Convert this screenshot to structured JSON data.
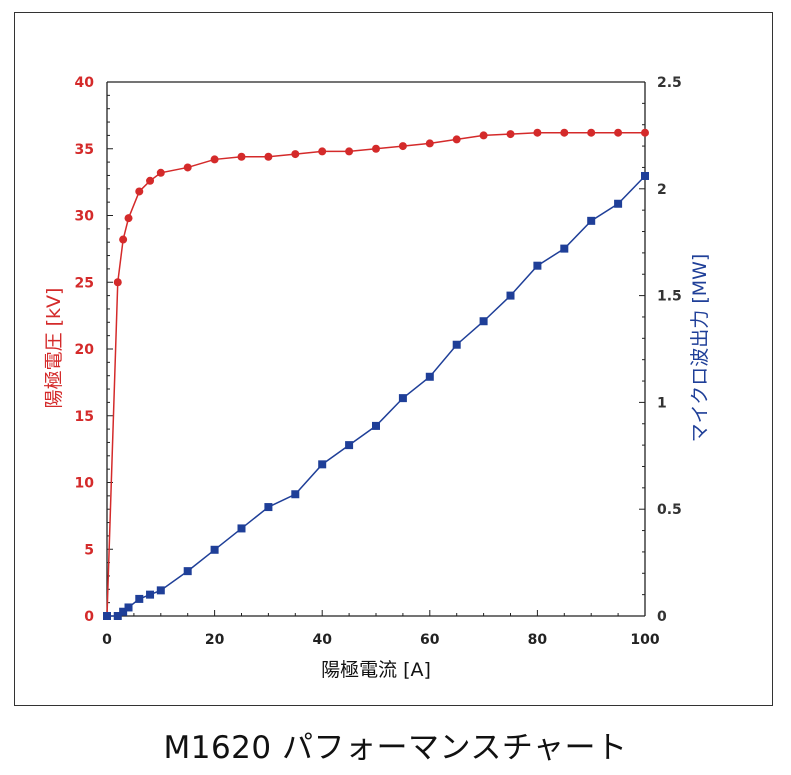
{
  "caption": "M1620 パフォーマンスチャート",
  "colors": {
    "voltage": "#d42a2a",
    "power": "#1f3f98",
    "axis": "#222222"
  },
  "chart_data": {
    "type": "line",
    "title": "M1620 パフォーマンスチャート",
    "xlabel": "陽極電流 [A]",
    "ylabel_left": "陽極電圧 [kV]",
    "ylabel_right": "マイクロ波出力 [MW]",
    "xlim": [
      0,
      100
    ],
    "ylim_left": [
      0,
      40
    ],
    "ylim_right": [
      0,
      2.5
    ],
    "grid": false,
    "legend": "none",
    "x_ticks": [
      "0",
      "20",
      "40",
      "60",
      "80",
      "100"
    ],
    "y_left_ticks": [
      "0",
      "5",
      "10",
      "15",
      "20",
      "25",
      "30",
      "35",
      "40"
    ],
    "y_right_ticks": [
      "0",
      "0.5",
      "1",
      "1.5",
      "2",
      "2.5"
    ],
    "series": [
      {
        "axis": "left",
        "marker": "circle",
        "color": "#d42a2a",
        "x": [
          0,
          2,
          3,
          4,
          6,
          8,
          10,
          15,
          20,
          25,
          30,
          35,
          40,
          45,
          50,
          55,
          60,
          65,
          70,
          75,
          80,
          85,
          90,
          95,
          100
        ],
        "y": [
          0,
          25,
          28.2,
          29.8,
          31.8,
          32.6,
          33.2,
          33.6,
          34.2,
          34.4,
          34.4,
          34.6,
          34.8,
          34.8,
          35,
          35.2,
          35.4,
          35.7,
          36,
          36.1,
          36.2,
          36.2,
          36.2,
          36.2,
          36.2
        ]
      },
      {
        "axis": "right",
        "marker": "square",
        "color": "#1f3f98",
        "x": [
          0,
          2,
          3,
          4,
          6,
          8,
          10,
          15,
          20,
          25,
          30,
          35,
          40,
          45,
          50,
          55,
          60,
          65,
          70,
          75,
          80,
          85,
          90,
          95,
          100
        ],
        "y": [
          0,
          0,
          0.02,
          0.04,
          0.08,
          0.1,
          0.12,
          0.21,
          0.31,
          0.41,
          0.51,
          0.57,
          0.71,
          0.8,
          0.89,
          1.02,
          1.12,
          1.27,
          1.38,
          1.5,
          1.64,
          1.72,
          1.85,
          1.93,
          2.06
        ]
      }
    ]
  }
}
